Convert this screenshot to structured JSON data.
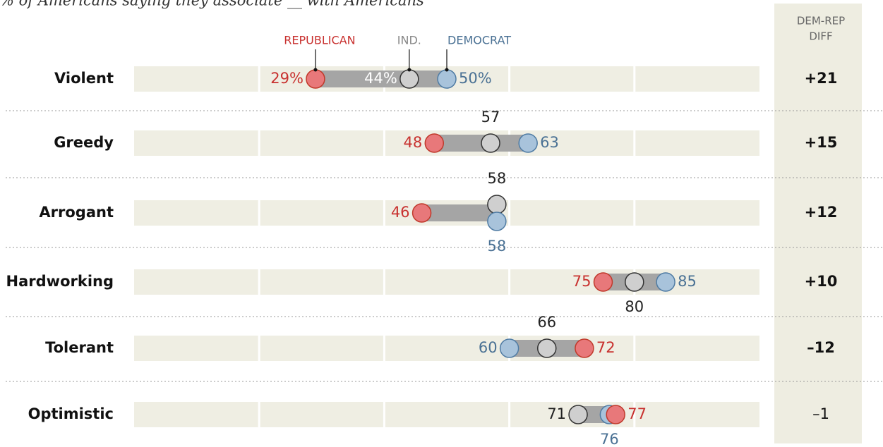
{
  "chart_data": {
    "type": "dot",
    "subtitle": "% of Americans saying they associate __ with Americans",
    "categories": [
      "Violent",
      "Greedy",
      "Arrogant",
      "Hardworking",
      "Tolerant",
      "Optimistic"
    ],
    "series": [
      {
        "name": "REPUBLICAN",
        "color": "#e8787a",
        "values": [
          29,
          48,
          46,
          75,
          72,
          77
        ],
        "value_labels": [
          "29%",
          "48",
          "46",
          "75",
          "72",
          "77"
        ]
      },
      {
        "name": "IND.",
        "color": "#cfcfcf",
        "values": [
          44,
          57,
          58,
          80,
          66,
          71
        ],
        "value_labels": [
          "44%",
          "57",
          "58",
          "80",
          "66",
          "71"
        ]
      },
      {
        "name": "DEMOCRAT",
        "color": "#a8c3db",
        "values": [
          50,
          63,
          58,
          85,
          60,
          76
        ],
        "value_labels": [
          "50%",
          "63",
          "58",
          "85",
          "60",
          "76"
        ]
      }
    ],
    "xlim": [
      0,
      100
    ],
    "xticks": [
      0,
      20,
      40,
      60,
      80,
      100
    ],
    "diff_header": [
      "DEM-REP",
      "DIFF"
    ],
    "diff": {
      "values": [
        21,
        15,
        12,
        10,
        -12,
        -1
      ],
      "value_labels": [
        "+21",
        "+15",
        "+12",
        "+10",
        "–12",
        "–1"
      ]
    }
  }
}
